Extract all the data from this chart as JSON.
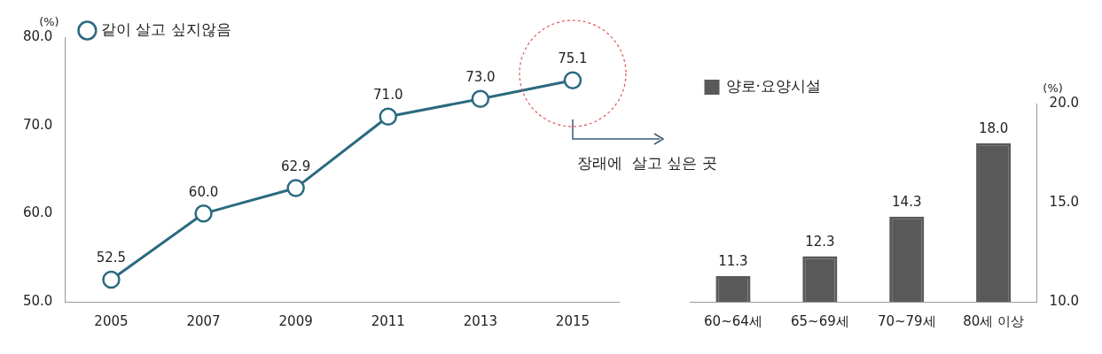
{
  "chart_data": [
    {
      "type": "line",
      "ylabel": "(%)",
      "categories": [
        "2005",
        "2007",
        "2009",
        "2011",
        "2013",
        "2015"
      ],
      "series": [
        {
          "name": "같이 살고 싶지않음",
          "color": "#2b6a80",
          "values": [
            52.5,
            60.0,
            62.9,
            71.0,
            73.0,
            75.1
          ],
          "value_labels": [
            "52.5",
            "60.0",
            "62.9",
            "71.0",
            "73.0",
            "75.1"
          ]
        }
      ],
      "ylim": [
        50,
        80
      ],
      "yticks": [
        {
          "value": 50,
          "label": "50.0"
        },
        {
          "value": 60,
          "label": "60.0"
        },
        {
          "value": 70,
          "label": "70.0"
        },
        {
          "value": 80,
          "label": "80.0"
        }
      ],
      "grid": false,
      "legend": "top left",
      "marker": "circle",
      "line_style": "solid",
      "annotations": [
        "장래에  살고 싶은 곳"
      ]
    },
    {
      "type": "bar",
      "ylabel": "(%)",
      "categories": [
        "60~64세",
        "65~69세",
        "70~79세",
        "80세 이상"
      ],
      "series": [
        {
          "name": "양로·요양시설",
          "color": "#595959",
          "values": [
            11.3,
            12.3,
            14.3,
            18.0
          ],
          "value_labels": [
            "11.3",
            "12.3",
            "14.3",
            "18.0"
          ]
        }
      ],
      "ylim": [
        10,
        20
      ],
      "yticks": [
        {
          "value": 10,
          "label": "10.0"
        },
        {
          "value": 15,
          "label": "15.0"
        },
        {
          "value": 20,
          "label": "20.0"
        }
      ],
      "grid": false,
      "legend": "top left"
    }
  ]
}
